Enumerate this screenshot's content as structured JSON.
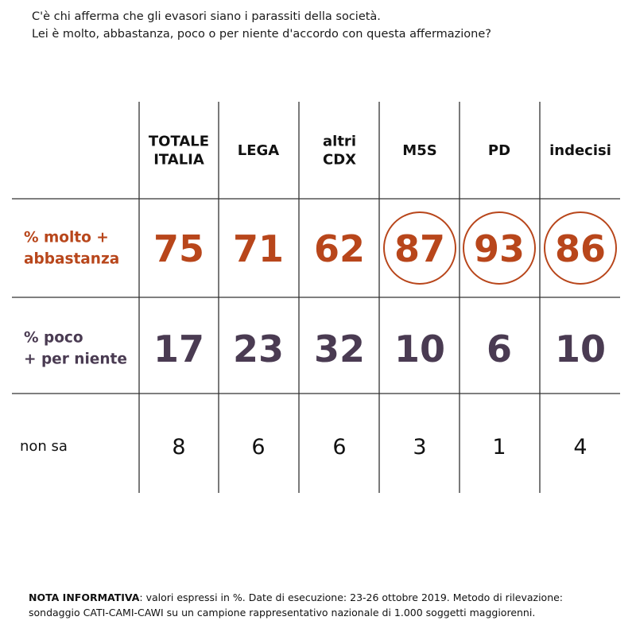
{
  "question": {
    "line1": "C'è chi afferma che gli evasori siano i parassiti della società.",
    "line2": "Lei è molto, abbastanza, poco o per niente d'accordo con questa affermazione?"
  },
  "chart_data": {
    "type": "table",
    "columns": [
      [
        "TOTALE",
        "ITALIA"
      ],
      [
        "LEGA"
      ],
      [
        "altri",
        "CDX"
      ],
      [
        "M5S"
      ],
      [
        "PD"
      ],
      [
        "indecisi"
      ]
    ],
    "rows": [
      {
        "label": [
          "% molto +",
          "abbastanza"
        ],
        "values": [
          75,
          71,
          62,
          87,
          93,
          86
        ],
        "circled": [
          false,
          false,
          false,
          true,
          true,
          true
        ]
      },
      {
        "label": [
          "% poco",
          "+ per niente"
        ],
        "values": [
          17,
          23,
          32,
          10,
          6,
          10
        ]
      },
      {
        "label": [
          "non sa"
        ],
        "values": [
          8,
          6,
          6,
          3,
          1,
          4
        ]
      }
    ],
    "colors": {
      "row1": "#b8461b",
      "row2": "#4a3b52",
      "row3": "#111111",
      "lines": "#333333"
    }
  },
  "note": {
    "bold": "NOTA INFORMATIVA",
    "text": ": valori espressi in %. Date di esecuzione: 23-26 ottobre 2019. Metodo di rilevazione: sondaggio CATI-CAMI-CAWI su un campione rappresentativo nazionale di 1.000 soggetti maggiorenni."
  }
}
